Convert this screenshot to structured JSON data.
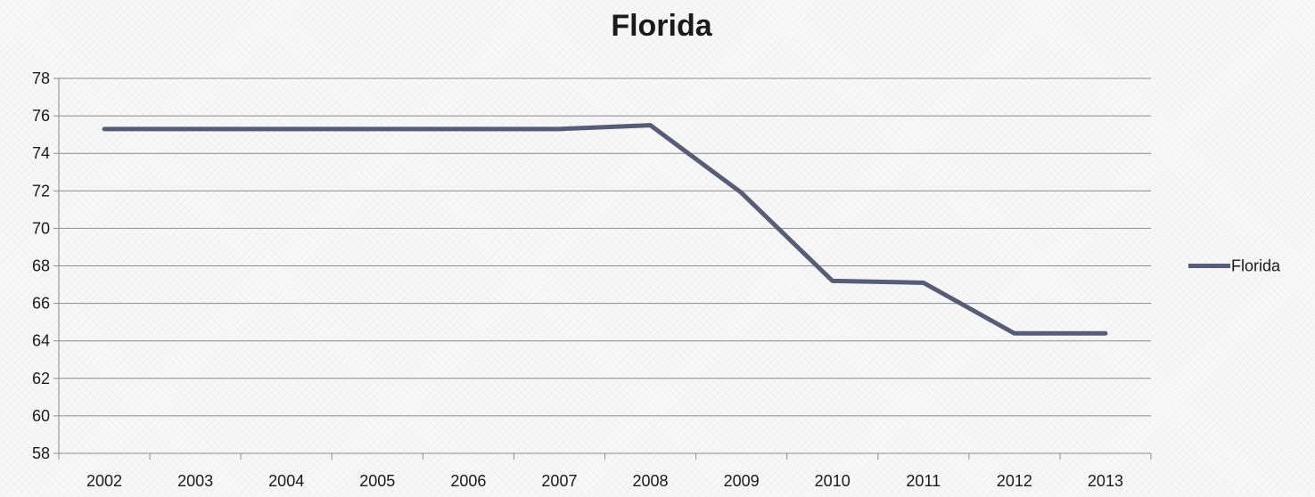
{
  "chart_data": {
    "type": "line",
    "title": "Florida",
    "xlabel": "",
    "ylabel": "",
    "categories": [
      "2002",
      "2003",
      "2004",
      "2005",
      "2006",
      "2007",
      "2008",
      "2009",
      "2010",
      "2011",
      "2012",
      "2013"
    ],
    "series": [
      {
        "name": "Florida",
        "color": "#555d78",
        "values": [
          75.3,
          75.3,
          75.3,
          75.3,
          75.3,
          75.3,
          75.5,
          71.9,
          67.2,
          67.1,
          64.4,
          64.4
        ]
      }
    ],
    "ylim": [
      58,
      78
    ],
    "yticks": [
      "58",
      "60",
      "62",
      "64",
      "66",
      "68",
      "70",
      "72",
      "74",
      "76",
      "78"
    ],
    "grid": true,
    "legend": "right"
  }
}
